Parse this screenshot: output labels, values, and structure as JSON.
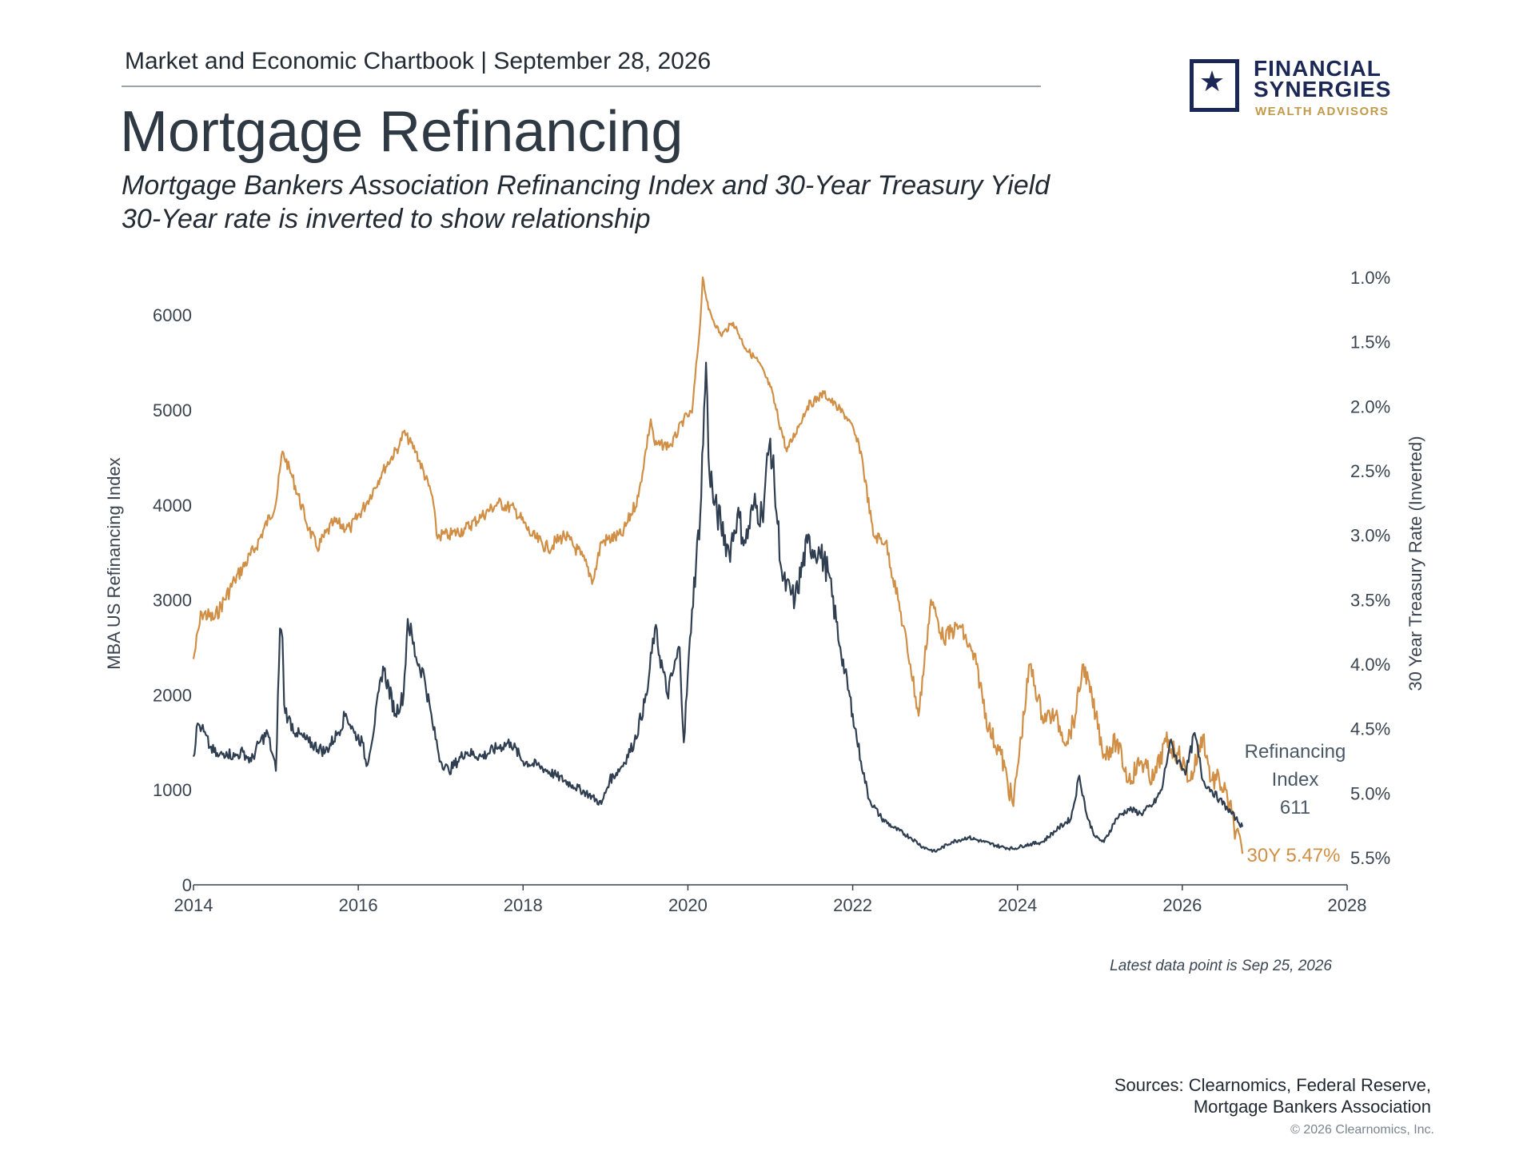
{
  "header": {
    "chartbook": "Market and Economic Chartbook | September 28, 2026",
    "title": "Mortgage Refinancing",
    "subtitle_1": "Mortgage Bankers Association Refinancing Index and 30-Year Treasury Yield",
    "subtitle_2": "30-Year rate is inverted to show relationship"
  },
  "logo": {
    "line1": "FINANCIAL",
    "line2": "SYNERGIES",
    "line3": "WEALTH ADVISORS",
    "icon": "star-icon",
    "color_navy": "#1b2754",
    "color_gold": "#c19a4b"
  },
  "chart_data": {
    "type": "line",
    "title": "",
    "ylabel_left": "MBA US Refinancing Index",
    "ylabel_right": "30 Year Treasury Rate (Inverted)",
    "xlim": [
      2014,
      2028
    ],
    "ylim_left": [
      0,
      6500
    ],
    "ylim_right_inverted": [
      1.0,
      5.5
    ],
    "x_ticks": [
      "2014",
      "2016",
      "2018",
      "2020",
      "2022",
      "2024",
      "2026",
      "2028"
    ],
    "y_left_ticks": [
      "0",
      "1000",
      "2000",
      "3000",
      "4000",
      "5000",
      "6000"
    ],
    "y_right_ticks": [
      "1.0%",
      "1.5%",
      "2.0%",
      "2.5%",
      "3.0%",
      "3.5%",
      "4.0%",
      "4.5%",
      "5.0%",
      "5.5%"
    ],
    "grid": false,
    "series": [
      {
        "name": "Refinancing Index",
        "axis": "left",
        "color": "#2f3e50",
        "x": [
          2014.0,
          2014.05,
          2014.1,
          2014.2,
          2014.3,
          2014.4,
          2014.5,
          2014.6,
          2014.7,
          2014.8,
          2014.9,
          2015.0,
          2015.05,
          2015.08,
          2015.1,
          2015.15,
          2015.25,
          2015.4,
          2015.6,
          2015.75,
          2015.85,
          2015.95,
          2016.05,
          2016.1,
          2016.2,
          2016.3,
          2016.45,
          2016.55,
          2016.6,
          2016.7,
          2016.8,
          2016.9,
          2017.0,
          2017.1,
          2017.3,
          2017.5,
          2017.7,
          2017.85,
          2018.0,
          2018.2,
          2018.4,
          2018.6,
          2018.8,
          2018.95,
          2019.05,
          2019.2,
          2019.35,
          2019.5,
          2019.6,
          2019.75,
          2019.9,
          2019.95,
          2020.05,
          2020.15,
          2020.22,
          2020.25,
          2020.32,
          2020.4,
          2020.5,
          2020.6,
          2020.7,
          2020.8,
          2020.9,
          2021.0,
          2021.05,
          2021.15,
          2021.3,
          2021.45,
          2021.6,
          2021.7,
          2021.85,
          2022.0,
          2022.1,
          2022.2,
          2022.35,
          2022.5,
          2022.7,
          2022.85,
          2023.0,
          2023.2,
          2023.4,
          2023.6,
          2023.8,
          2023.95,
          2024.1,
          2024.3,
          2024.5,
          2024.65,
          2024.75,
          2024.85,
          2024.95,
          2025.05,
          2025.2,
          2025.35,
          2025.5,
          2025.65,
          2025.75,
          2025.85,
          2025.95,
          2026.05,
          2026.15,
          2026.25,
          2026.35,
          2026.45,
          2026.55,
          2026.65,
          2026.73
        ],
        "values": [
          1350,
          1700,
          1650,
          1450,
          1350,
          1400,
          1350,
          1400,
          1300,
          1500,
          1600,
          1200,
          2700,
          2600,
          1900,
          1750,
          1600,
          1500,
          1400,
          1600,
          1800,
          1600,
          1500,
          1250,
          1700,
          2300,
          1800,
          2000,
          2800,
          2400,
          2200,
          1700,
          1300,
          1200,
          1400,
          1350,
          1450,
          1500,
          1300,
          1250,
          1150,
          1050,
          950,
          850,
          1100,
          1250,
          1500,
          2000,
          2700,
          2000,
          2500,
          1500,
          2900,
          3900,
          5500,
          4500,
          4000,
          3800,
          3500,
          3900,
          3600,
          4000,
          3900,
          4700,
          4200,
          3200,
          3000,
          3600,
          3500,
          3300,
          2500,
          1800,
          1300,
          900,
          700,
          600,
          500,
          400,
          350,
          450,
          500,
          450,
          400,
          380,
          420,
          450,
          600,
          700,
          1150,
          700,
          500,
          450,
          700,
          800,
          750,
          850,
          1000,
          1500,
          1300,
          1200,
          1600,
          1100,
          1000,
          900,
          800,
          700,
          611
        ]
      },
      {
        "name": "30Y",
        "axis": "right",
        "color": "#d08f45",
        "x": [
          2014.0,
          2014.1,
          2014.25,
          2014.5,
          2014.75,
          2015.0,
          2015.08,
          2015.2,
          2015.4,
          2015.5,
          2015.7,
          2015.9,
          2016.1,
          2016.3,
          2016.5,
          2016.55,
          2016.7,
          2016.9,
          2016.95,
          2017.1,
          2017.3,
          2017.5,
          2017.7,
          2017.9,
          2018.1,
          2018.3,
          2018.5,
          2018.7,
          2018.85,
          2018.95,
          2019.2,
          2019.4,
          2019.55,
          2019.6,
          2019.8,
          2019.95,
          2020.05,
          2020.15,
          2020.18,
          2020.25,
          2020.4,
          2020.55,
          2020.7,
          2020.85,
          2021.0,
          2021.2,
          2021.45,
          2021.65,
          2021.8,
          2021.95,
          2022.1,
          2022.25,
          2022.4,
          2022.55,
          2022.7,
          2022.8,
          2022.95,
          2023.1,
          2023.3,
          2023.5,
          2023.65,
          2023.8,
          2023.95,
          2024.0,
          2024.15,
          2024.3,
          2024.45,
          2024.6,
          2024.7,
          2024.8,
          2024.95,
          2025.05,
          2025.2,
          2025.35,
          2025.5,
          2025.65,
          2025.8,
          2025.95,
          2026.1,
          2026.25,
          2026.35,
          2026.45,
          2026.55,
          2026.65,
          2026.73
        ],
        "values": [
          3.96,
          3.6,
          3.65,
          3.35,
          3.1,
          2.75,
          2.35,
          2.55,
          2.95,
          3.1,
          2.9,
          2.95,
          2.75,
          2.5,
          2.3,
          2.2,
          2.35,
          2.7,
          3.0,
          3.0,
          2.95,
          2.85,
          2.75,
          2.8,
          3.0,
          3.1,
          3.0,
          3.15,
          3.35,
          3.05,
          3.0,
          2.7,
          2.1,
          2.3,
          2.3,
          2.1,
          2.05,
          1.35,
          1.0,
          1.25,
          1.45,
          1.35,
          1.55,
          1.65,
          1.85,
          2.35,
          2.0,
          1.9,
          2.0,
          2.1,
          2.35,
          3.0,
          3.05,
          3.5,
          4.0,
          4.4,
          3.5,
          3.8,
          3.7,
          4.0,
          4.5,
          4.7,
          5.1,
          4.8,
          4.0,
          4.4,
          4.4,
          4.6,
          4.4,
          4.0,
          4.4,
          4.7,
          4.6,
          4.9,
          4.75,
          4.9,
          4.6,
          4.7,
          4.9,
          4.55,
          4.9,
          4.9,
          5.05,
          5.3,
          5.47
        ]
      }
    ],
    "annotations": {
      "refi_label_1": "Refinancing",
      "refi_label_2": "Index",
      "refi_value": "611",
      "rate_label": "30Y 5.47%"
    }
  },
  "footer": {
    "latest": "Latest data point is Sep 25, 2026",
    "sources_1": "Sources: Clearnomics, Federal Reserve,",
    "sources_2": "Mortgage Bankers Association",
    "copyright": "© 2026 Clearnomics, Inc."
  }
}
